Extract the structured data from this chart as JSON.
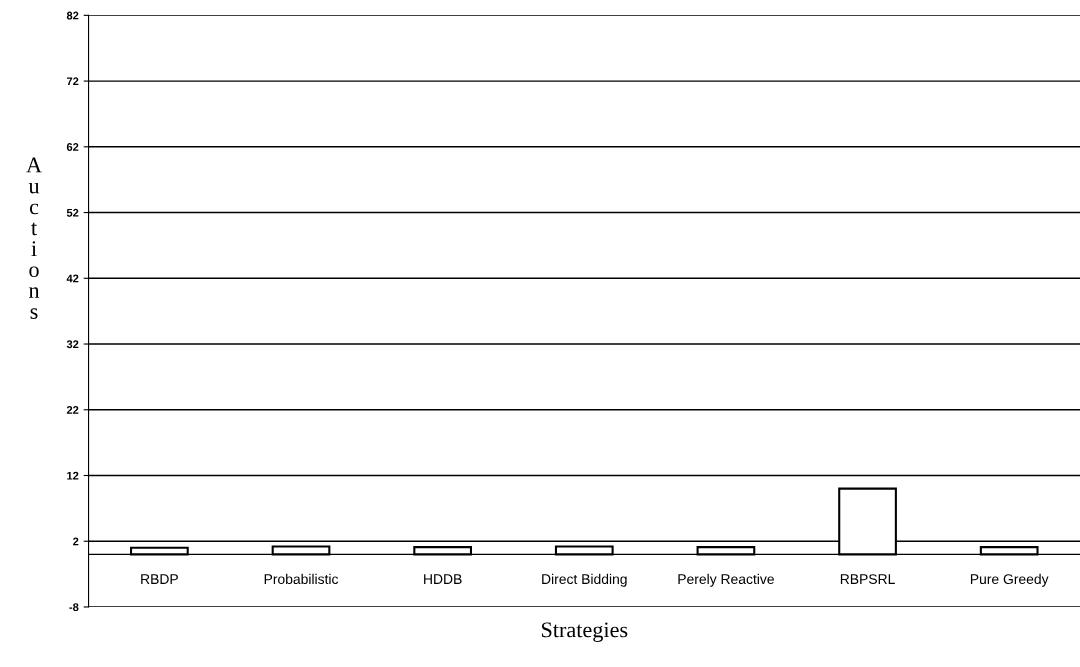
{
  "chart_data": {
    "type": "bar",
    "xlabel": "Strategies",
    "ylabel": "Auctions",
    "categories": [
      "RBDP",
      "Probabilistic",
      "HDDB",
      "Direct Bidding",
      "Perely Reactive",
      "RBPSRL",
      "Pure Greedy"
    ],
    "values": [
      1.0,
      1.2,
      1.1,
      1.2,
      1.1,
      10.0,
      1.1
    ],
    "color": "#ffffff",
    "ylim": [
      -8,
      82
    ],
    "yticks": [
      -8,
      2,
      12,
      22,
      32,
      42,
      52,
      62,
      72,
      82
    ],
    "grid": "y"
  }
}
